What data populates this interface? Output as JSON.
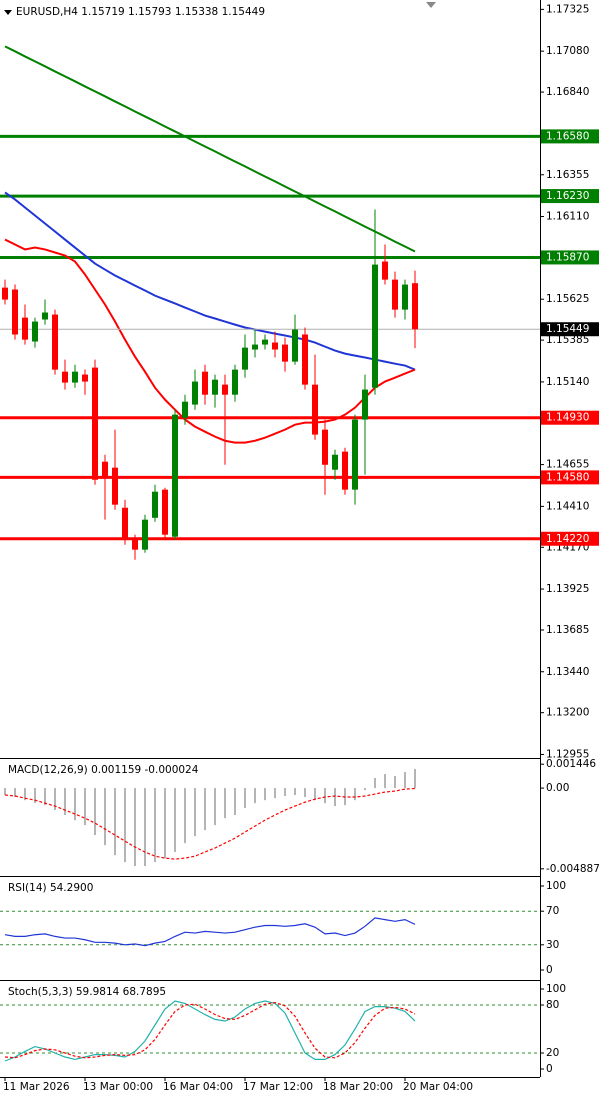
{
  "chart_data": [
    {
      "type": "candlestick",
      "title": "EURUSD,H4  1.15719 1.15793 1.15338 1.15449",
      "categories": [
        "11 Mar 2026",
        null,
        null,
        null,
        null,
        null,
        null,
        null,
        "13 Mar 00:00",
        null,
        null,
        null,
        null,
        null,
        null,
        null,
        "16 Mar 04:00",
        null,
        null,
        null,
        null,
        null,
        null,
        null,
        "17 Mar 12:00",
        null,
        null,
        null,
        null,
        null,
        null,
        null,
        "18 Mar 20:00",
        null,
        null,
        null,
        null,
        null,
        null,
        null,
        "20 Mar 04:00",
        null
      ],
      "open": [
        1.15693,
        1.15682,
        1.15517,
        1.15377,
        1.15506,
        1.15535,
        1.152,
        1.15136,
        1.15183,
        1.15224,
        1.14672,
        1.14637,
        1.14402,
        1.14214,
        1.14156,
        1.14343,
        1.14508,
        1.14232,
        1.1493,
        1.15007,
        1.152,
        1.15065,
        1.15124,
        1.15065,
        1.15212,
        1.1533,
        1.15359,
        1.15371,
        1.15359,
        1.15259,
        1.15418,
        1.15124,
        1.1486,
        1.14625,
        1.14731,
        1.14508,
        1.14919,
        1.15106,
        1.15846,
        1.1574,
        1.15564,
        1.15719
      ],
      "high": [
        1.1574,
        1.15711,
        1.15594,
        1.15517,
        1.15623,
        1.15564,
        1.15271,
        1.15241,
        1.15212,
        1.15271,
        1.14713,
        1.1486,
        1.14449,
        1.14244,
        1.14361,
        1.14537,
        1.14519,
        1.14977,
        1.15065,
        1.15212,
        1.15241,
        1.15183,
        1.15183,
        1.15241,
        1.15418,
        1.15447,
        1.15418,
        1.15435,
        1.154,
        1.15535,
        1.15459,
        1.153,
        1.14919,
        1.14743,
        1.14754,
        1.14948,
        1.15183,
        1.16151,
        1.15946,
        1.15787,
        1.1574,
        1.15793
      ],
      "low": [
        1.15594,
        1.15388,
        1.15359,
        1.15341,
        1.15476,
        1.15183,
        1.15095,
        1.15106,
        1.15065,
        1.14537,
        1.14332,
        1.1439,
        1.14185,
        1.14097,
        1.14138,
        1.1432,
        1.14214,
        1.14214,
        1.14889,
        1.14977,
        1.15007,
        1.14989,
        1.14654,
        1.15024,
        1.15165,
        1.15283,
        1.1533,
        1.15283,
        1.152,
        1.15241,
        1.15095,
        1.14801,
        1.14478,
        1.14566,
        1.14478,
        1.1442,
        1.14596,
        1.15065,
        1.15711,
        1.15517,
        1.15506,
        1.15338
      ],
      "close": [
        1.15623,
        1.15418,
        1.15388,
        1.15494,
        1.15547,
        1.15212,
        1.15136,
        1.152,
        1.15142,
        1.14566,
        1.14578,
        1.1442,
        1.14214,
        1.14156,
        1.14332,
        1.14496,
        1.14244,
        1.14948,
        1.15024,
        1.15142,
        1.15065,
        1.15153,
        1.15065,
        1.15212,
        1.15341,
        1.15359,
        1.15388,
        1.1533,
        1.15259,
        1.15447,
        1.15124,
        1.14831,
        1.14654,
        1.14713,
        1.14508,
        1.14919,
        1.15095,
        1.15828,
        1.1574,
        1.15564,
        1.15711,
        1.15449
      ],
      "up_color": "#008000",
      "down_color": "#ff0000",
      "series": [
        {
          "color": "#008000",
          "values": [
            1.17108,
            1.17079,
            1.17049,
            1.1702,
            1.16991,
            1.16961,
            1.16932,
            1.16903,
            1.16873,
            1.16844,
            1.16815,
            1.16785,
            1.16756,
            1.16726,
            1.16697,
            1.16668,
            1.16638,
            1.16609,
            1.1658,
            1.1655,
            1.16521,
            1.16492,
            1.16462,
            1.16433,
            1.16404,
            1.16374,
            1.16345,
            1.16316,
            1.16286,
            1.16257,
            1.16228,
            1.16198,
            1.16169,
            1.1614,
            1.1611,
            1.16081,
            1.16051,
            1.16022,
            1.15993,
            1.15963,
            1.15934,
            1.15905
          ]
        },
        {
          "color": "#1f35d6",
          "values": [
            1.16251,
            1.1621,
            1.16163,
            1.16116,
            1.16069,
            1.16022,
            1.15975,
            1.15928,
            1.15881,
            1.15834,
            1.15799,
            1.15764,
            1.15735,
            1.15705,
            1.15676,
            1.15646,
            1.15623,
            1.156,
            1.15576,
            1.15553,
            1.15529,
            1.15512,
            1.15494,
            1.15476,
            1.15459,
            1.15447,
            1.15435,
            1.15423,
            1.15412,
            1.154,
            1.15388,
            1.15371,
            1.15347,
            1.15324,
            1.15306,
            1.15294,
            1.15283,
            1.15271,
            1.15259,
            1.15247,
            1.15236,
            1.15212
          ]
        },
        {
          "color": "#ff0000",
          "values": [
            1.15975,
            1.15946,
            1.15917,
            1.15928,
            1.15917,
            1.15899,
            1.15881,
            1.15846,
            1.1577,
            1.15682,
            1.15594,
            1.15494,
            1.15388,
            1.15288,
            1.152,
            1.15106,
            1.15036,
            1.14977,
            1.14919,
            1.14878,
            1.14848,
            1.14819,
            1.14795,
            1.14784,
            1.14784,
            1.14795,
            1.14813,
            1.14836,
            1.1486,
            1.14889,
            1.14901,
            1.14901,
            1.14907,
            1.14919,
            1.14948,
            1.14989,
            1.15048,
            1.15106,
            1.15142,
            1.15165,
            1.15189,
            1.15212
          ]
        }
      ],
      "levels": [
        {
          "value": 1.1658,
          "label": "1.16580",
          "color": "#008000"
        },
        {
          "value": 1.1623,
          "label": "1.16230",
          "color": "#008000"
        },
        {
          "value": 1.1587,
          "label": "1.15870",
          "color": "#008000"
        },
        {
          "value": 1.1493,
          "label": "1.14930",
          "color": "#ff0000"
        },
        {
          "value": 1.1458,
          "label": "1.14580",
          "color": "#ff0000"
        },
        {
          "value": 1.1422,
          "label": "1.14220",
          "color": "#ff0000"
        }
      ],
      "current_price": {
        "value": 1.15449,
        "label": "1.15449",
        "color": "#000000"
      },
      "ylim": [
        1.1294,
        1.1738
      ],
      "yticks": [
        1.17325,
        {
          "value": 1.1708,
          "label": "1.17080"
        },
        {
          "value": 1.1684,
          "label": "1.16840"
        },
        1.16355,
        {
          "value": 1.1611,
          "label": "1.16110"
        },
        1.15625,
        1.15385,
        {
          "value": 1.1514,
          "label": "1.15140"
        },
        1.14655,
        {
          "value": 1.1441,
          "label": "1.14410"
        },
        {
          "value": 1.1417,
          "label": "1.14170"
        },
        1.13925,
        1.13685,
        {
          "value": 1.1344,
          "label": "1.13440"
        },
        {
          "value": 1.132,
          "label": "1.13200"
        },
        1.12955
      ]
    },
    {
      "type": "indicator",
      "title": "MACD(12,26,9) 0.001159 -0.000024",
      "series": [
        {
          "type": "bar",
          "color": "#b4b4b4",
          "values": [
            -0.00042,
            -0.00054,
            -0.00073,
            -0.00091,
            -0.00103,
            -0.00133,
            -0.00163,
            -0.00194,
            -0.00224,
            -0.00284,
            -0.00345,
            -0.00406,
            -0.00448,
            -0.00472,
            -0.00472,
            -0.00448,
            -0.00424,
            -0.00387,
            -0.00333,
            -0.00291,
            -0.00254,
            -0.00224,
            -0.00182,
            -0.00163,
            -0.00121,
            -0.00091,
            -0.00073,
            -0.00061,
            -0.00048,
            -0.00042,
            -0.00054,
            -0.00073,
            -0.00091,
            -0.00109,
            -0.00103,
            -0.00073,
            -0.00012,
            0.00061,
            0.00085,
            0.00073,
            0.00097,
            0.001159
          ]
        },
        {
          "type": "line",
          "dash": true,
          "color": "#ff0000",
          "values": [
            -0.00042,
            -0.00048,
            -0.00061,
            -0.00073,
            -0.00091,
            -0.00109,
            -0.00133,
            -0.00157,
            -0.00182,
            -0.00212,
            -0.00248,
            -0.00284,
            -0.00321,
            -0.00357,
            -0.00387,
            -0.00412,
            -0.00424,
            -0.0043,
            -0.00424,
            -0.00412,
            -0.00387,
            -0.00363,
            -0.00333,
            -0.00303,
            -0.00266,
            -0.0023,
            -0.00194,
            -0.00163,
            -0.00133,
            -0.00109,
            -0.00085,
            -0.00067,
            -0.00054,
            -0.00048,
            -0.00054,
            -0.00054,
            -0.00048,
            -0.00036,
            -0.00024,
            -0.00018,
            -6e-05,
            -2.4e-05
          ]
        }
      ],
      "ylim": [
        -0.0052,
        0.0017
      ],
      "yticks": [
        0.001446,
        {
          "value": 0,
          "label": "0.00"
        },
        -0.004887
      ]
    },
    {
      "type": "indicator",
      "title": "RSI(14) 54.2900",
      "series": [
        {
          "type": "line",
          "color": "#1f35d6",
          "values": [
            42,
            40,
            40,
            42,
            43,
            40,
            38,
            38,
            36,
            33,
            33,
            32,
            30,
            31,
            29,
            32,
            34,
            40,
            45,
            44,
            46,
            45,
            44,
            45,
            48,
            51,
            53,
            53,
            52,
            53,
            55,
            51,
            43,
            44,
            41,
            44,
            52,
            62,
            60,
            58,
            60,
            54.29
          ]
        }
      ],
      "levels": [
        70,
        30
      ],
      "level_color": "#2f8f2f",
      "ylim": [
        -9.5,
        109.5
      ],
      "yticks": [
        100,
        70,
        30,
        0
      ]
    },
    {
      "type": "indicator",
      "title": "Stoch(5,3,3) 59.9814 68.7895",
      "series": [
        {
          "type": "line",
          "color": "#20b2aa",
          "values": [
            10,
            15,
            22,
            28,
            25,
            20,
            15,
            12,
            15,
            18,
            18,
            17,
            15,
            22,
            35,
            55,
            75,
            85,
            82,
            75,
            68,
            62,
            60,
            65,
            75,
            82,
            85,
            82,
            70,
            45,
            20,
            12,
            12,
            18,
            30,
            50,
            72,
            78,
            78,
            76,
            72,
            59.9814
          ]
        },
        {
          "type": "line",
          "dash": true,
          "color": "#ff0000",
          "values": [
            15,
            14,
            18,
            23,
            25,
            24,
            20,
            16,
            14,
            15,
            17,
            18,
            17,
            18,
            24,
            37,
            55,
            72,
            80,
            81,
            75,
            68,
            63,
            62,
            67,
            74,
            81,
            83,
            79,
            66,
            45,
            26,
            15,
            14,
            20,
            33,
            51,
            67,
            76,
            77,
            75,
            68.7895
          ]
        }
      ],
      "levels": [
        80,
        20
      ],
      "level_color": "#2f8f2f",
      "ylim": [
        -8.75,
        108.75
      ],
      "yticks": [
        100,
        80,
        20,
        0
      ]
    }
  ]
}
